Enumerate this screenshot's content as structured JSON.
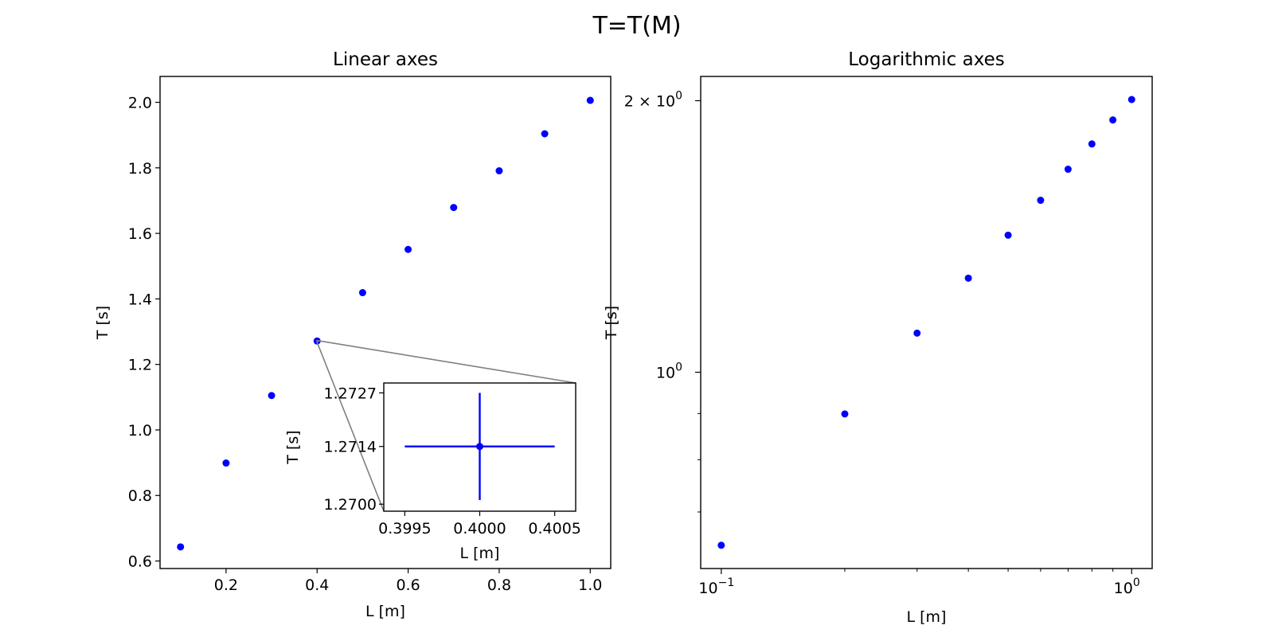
{
  "figure": {
    "suptitle": "T=T(M)"
  },
  "chart_data": [
    {
      "type": "scatter",
      "title": "Linear axes",
      "xlabel": "L [m]",
      "ylabel": "T [s]",
      "xscale": "linear",
      "yscale": "linear",
      "xlim": [
        0.055,
        1.045
      ],
      "ylim": [
        0.577,
        2.079
      ],
      "xticks": [
        0.2,
        0.4,
        0.6,
        0.8,
        1.0
      ],
      "xtick_labels": [
        "0.2",
        "0.4",
        "0.6",
        "0.8",
        "1.0"
      ],
      "yticks": [
        0.6,
        0.8,
        1.0,
        1.2,
        1.4,
        1.6,
        1.8,
        2.0
      ],
      "ytick_labels": [
        "0.6",
        "0.8",
        "1.0",
        "1.2",
        "1.4",
        "1.6",
        "1.8",
        "2.0"
      ],
      "grid": false,
      "color": "#0000ff",
      "series": [
        {
          "x": [
            0.1,
            0.2,
            0.3,
            0.4,
            0.5,
            0.6,
            0.7,
            0.8,
            0.9,
            1.0
          ],
          "y": [
            0.643,
            0.899,
            1.105,
            1.2714,
            1.419,
            1.551,
            1.679,
            1.791,
            1.904,
            2.006
          ]
        }
      ],
      "inset": {
        "type": "errorbar",
        "xlabel": "L [m]",
        "ylabel": "T [s]",
        "xlim": [
          0.39936,
          0.40064
        ],
        "ylim": [
          1.26983,
          1.27294
        ],
        "xticks": [
          0.3995,
          0.4,
          0.4005
        ],
        "xtick_labels": [
          "0.3995",
          "0.4000",
          "0.4005"
        ],
        "yticks": [
          1.27,
          1.2714,
          1.2727
        ],
        "ytick_labels": [
          "1.2700",
          "1.2714",
          "1.2727"
        ],
        "point": {
          "x": 0.4,
          "y": 1.2714,
          "xerr": 0.0005,
          "yerr": 0.0013
        },
        "zoom_region": {
          "x": [
            0.39936,
            0.40064
          ],
          "y": [
            1.26983,
            1.27294
          ]
        }
      }
    },
    {
      "type": "scatter",
      "title": "Logarithmic axes",
      "xlabel": "L [m]",
      "ylabel": "T [s]",
      "xscale": "log",
      "yscale": "log",
      "xlim": [
        0.0891,
        1.122
      ],
      "ylim": [
        0.6059,
        2.1278
      ],
      "xticks": [
        0.1,
        1.0
      ],
      "xtick_labels": [
        {
          "base": "10",
          "exp": "−1"
        },
        {
          "base": "10",
          "exp": "0"
        }
      ],
      "xminor_ticks": [
        0.2,
        0.3,
        0.4,
        0.5,
        0.6,
        0.7,
        0.8,
        0.9
      ],
      "yticks": [
        1.0,
        2.0
      ],
      "ytick_labels": [
        {
          "prefix": "",
          "base": "10",
          "exp": "0"
        },
        {
          "prefix": "2 × ",
          "base": "10",
          "exp": "0"
        }
      ],
      "yminor_ticks": [
        0.7,
        0.8,
        0.9
      ],
      "grid": false,
      "color": "#0000ff",
      "series": [
        {
          "x": [
            0.1,
            0.2,
            0.3,
            0.4,
            0.5,
            0.6,
            0.7,
            0.8,
            0.9,
            1.0
          ],
          "y": [
            0.643,
            0.899,
            1.105,
            1.2714,
            1.419,
            1.551,
            1.679,
            1.791,
            1.904,
            2.006
          ]
        }
      ]
    }
  ]
}
